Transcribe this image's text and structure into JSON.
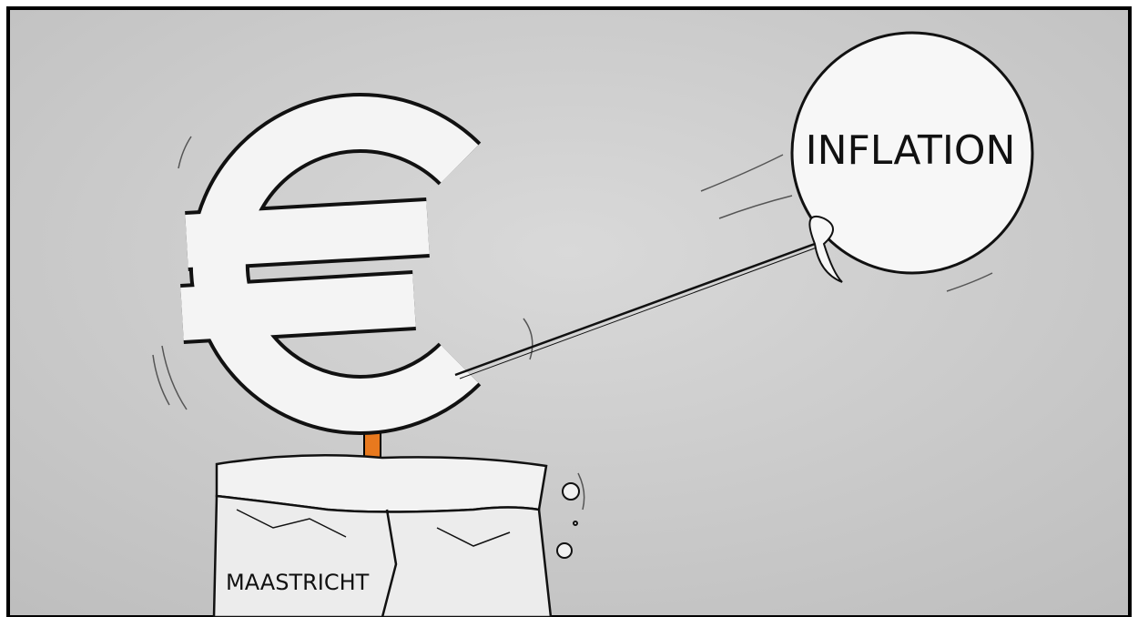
{
  "balloon": {
    "label": "INFLATION"
  },
  "pedestal": {
    "label": "MAASTRICHT"
  }
}
